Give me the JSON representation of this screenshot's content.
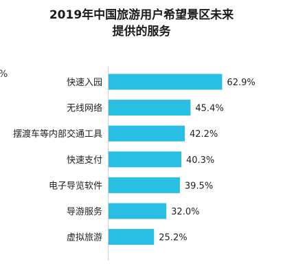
{
  "chart_data": {
    "type": "bar",
    "orientation": "horizontal",
    "title_lines": [
      "2019年中国旅游用户希望景区未来",
      "提供的服务"
    ],
    "categories": [
      "快速入园",
      "无线网络",
      "摆渡车等内部交通工具",
      "快速支付",
      "电子导览软件",
      "导游服务",
      "虚拟旅游"
    ],
    "values": [
      62.9,
      45.4,
      42.2,
      40.3,
      39.5,
      32.0,
      25.2
    ],
    "value_labels": [
      "62.9%",
      "45.4%",
      "42.2%",
      "40.3%",
      "39.5%",
      "32.0%",
      "25.2%"
    ],
    "xlim": [
      0,
      100
    ],
    "grid": false,
    "legend": "none",
    "bar_color": "#29bfe4"
  },
  "stray_text": "%"
}
